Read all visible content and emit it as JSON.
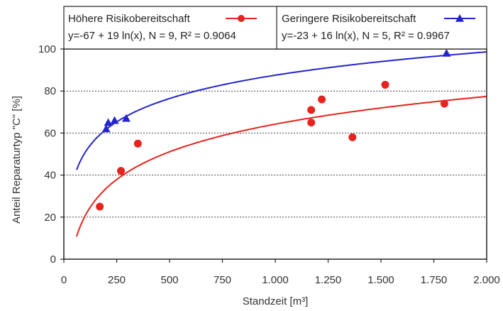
{
  "chart_data": {
    "type": "scatter",
    "xlabel": "Standzeit [m³]",
    "ylabel": "Anteil Reparaturtyp \"C\" [%]",
    "xlim": [
      0,
      2000
    ],
    "ylim": [
      0,
      100
    ],
    "x_ticks": [
      0,
      250,
      500,
      750,
      1000,
      1250,
      1500,
      1750,
      2000
    ],
    "x_tick_labels": [
      "0",
      "250",
      "500",
      "750",
      "1.000",
      "1.250",
      "1.500",
      "1.750",
      "2.000"
    ],
    "y_ticks": [
      0,
      20,
      40,
      60,
      80,
      100
    ],
    "y_tick_labels": [
      "0",
      "20",
      "40",
      "60",
      "80",
      "100"
    ],
    "grid": "horizontal dotted",
    "series": [
      {
        "name": "Höhere Risikobereitschaft",
        "equation": "y=-67 + 19 ln(x), N = 9, R² = 0.9064",
        "color": "#e8231f",
        "marker": "circle",
        "fit": {
          "a": -67,
          "b": 19,
          "x_start": 60,
          "x_end": 2000
        },
        "points": [
          {
            "x": 170,
            "y": 25
          },
          {
            "x": 270,
            "y": 42
          },
          {
            "x": 350,
            "y": 55
          },
          {
            "x": 1170,
            "y": 71
          },
          {
            "x": 1170,
            "y": 65
          },
          {
            "x": 1220,
            "y": 76
          },
          {
            "x": 1365,
            "y": 58
          },
          {
            "x": 1520,
            "y": 83
          },
          {
            "x": 1800,
            "y": 74
          }
        ]
      },
      {
        "name": "Geringere Risikobereitschaft",
        "equation": "y=-23 + 16 ln(x), N = 5, R² = 0.9967",
        "color": "#2424cc",
        "marker": "triangle",
        "fit": {
          "a": -23,
          "b": 16,
          "x_start": 60,
          "x_end": 2000
        },
        "points": [
          {
            "x": 200,
            "y": 62
          },
          {
            "x": 210,
            "y": 65
          },
          {
            "x": 240,
            "y": 66
          },
          {
            "x": 295,
            "y": 67
          },
          {
            "x": 1810,
            "y": 98
          }
        ]
      }
    ]
  }
}
